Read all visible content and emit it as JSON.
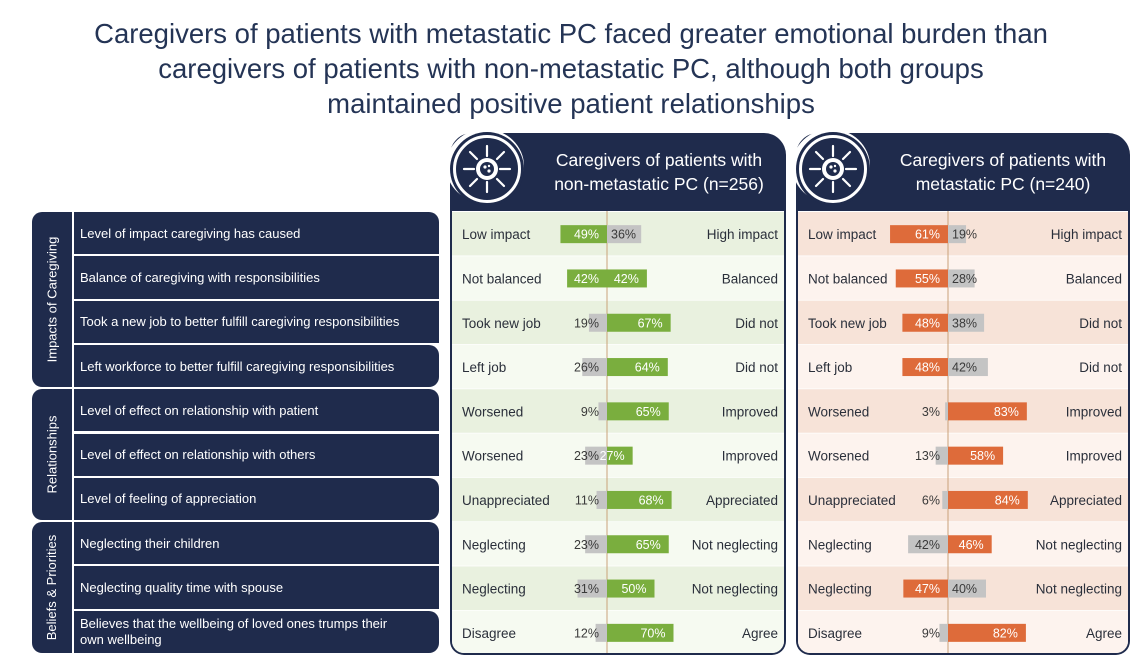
{
  "title_lines": [
    "Caregivers of patients with metastatic PC faced greater emotional burden than",
    "caregivers of patients with non-metastatic PC, although both groups",
    "maintained positive patient relationships"
  ],
  "panels": {
    "nonmet": {
      "header_line1": "Caregivers of patients with",
      "header_line2": "non-metastatic PC (n=256)",
      "color": "#7aae3e",
      "band_a": "#e9f1df",
      "band_b": "#f6faf1"
    },
    "met": {
      "header_line1": "Caregivers of patients with",
      "header_line2": "metastatic PC (n=240)",
      "color": "#de6b3a",
      "band_a": "#f7e3d8",
      "band_b": "#fdf3ee"
    }
  },
  "categories": [
    {
      "label": "Impacts of Caregiving",
      "rows": 4
    },
    {
      "label": "Relationships",
      "rows": 3
    },
    {
      "label": "Beliefs & Priorities",
      "rows": 3
    }
  ],
  "questions": [
    "Level of impact caregiving has caused",
    "Balance of caregiving with responsibilities",
    "Took a new job to better fulfill caregiving responsibilities",
    "Left workforce to better fulfill caregiving responsibilities",
    "Level of effect on relationship with patient",
    "Level of effect on relationship with others",
    "Level of feeling of appreciation",
    "Neglecting their children",
    "Neglecting quality time with spouse",
    "Believes that the wellbeing of loved ones trumps their own wellbeing"
  ],
  "chart_data": {
    "type": "bar",
    "orientation": "diverging-horizontal",
    "categories": [
      "Level of impact caregiving has caused",
      "Balance of caregiving with responsibilities",
      "Took a new job to better fulfill caregiving responsibilities",
      "Left workforce to better fulfill caregiving responsibilities",
      "Level of effect on relationship with patient",
      "Level of effect on relationship with others",
      "Level of feeling of appreciation",
      "Neglecting their children",
      "Neglecting quality time with spouse",
      "Believes that the wellbeing of loved ones trumps their own wellbeing"
    ],
    "left_labels": [
      "Low impact",
      "Not balanced",
      "Took new job",
      "Left job",
      "Worsened",
      "Worsened",
      "Unappreciated",
      "Neglecting",
      "Neglecting",
      "Disagree"
    ],
    "right_labels": [
      "High impact",
      "Balanced",
      "Did not",
      "Did not",
      "Improved",
      "Improved",
      "Appreciated",
      "Not neglecting",
      "Not neglecting",
      "Agree"
    ],
    "series": [
      {
        "name": "Caregivers of patients with non-metastatic PC (n=256)",
        "left_values": [
          49,
          42,
          19,
          26,
          9,
          23,
          11,
          23,
          31,
          12
        ],
        "right_values": [
          36,
          42,
          67,
          64,
          65,
          27,
          68,
          65,
          50,
          70
        ],
        "left_highlight": [
          true,
          true,
          false,
          false,
          false,
          false,
          false,
          false,
          false,
          false
        ],
        "right_highlight": [
          false,
          true,
          true,
          true,
          true,
          true,
          true,
          true,
          true,
          true
        ]
      },
      {
        "name": "Caregivers of patients with metastatic PC (n=240)",
        "left_values": [
          61,
          55,
          48,
          48,
          3,
          13,
          6,
          42,
          47,
          9
        ],
        "right_values": [
          19,
          28,
          38,
          42,
          83,
          58,
          84,
          46,
          40,
          82
        ],
        "left_highlight": [
          true,
          true,
          true,
          true,
          false,
          false,
          false,
          false,
          true,
          false
        ],
        "right_highlight": [
          false,
          false,
          false,
          false,
          true,
          true,
          true,
          true,
          false,
          true
        ]
      }
    ],
    "value_suffix": "%",
    "neutral_color": "#c4c4c4"
  }
}
